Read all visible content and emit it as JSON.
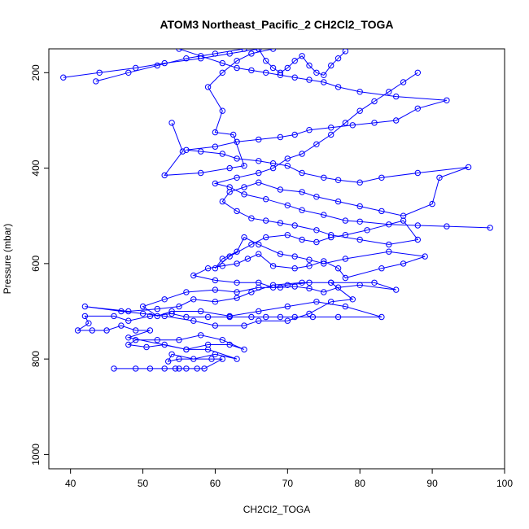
{
  "chart_data": {
    "type": "line",
    "title": "ATOM3 Northeast_Pacific_2 CH2Cl2_TOGA",
    "xlabel": "CH2Cl2_TOGA",
    "ylabel": "Pressure (mbar)",
    "xlim": [
      37,
      100
    ],
    "ylim": [
      1030,
      150
    ],
    "y_inverted": true,
    "xticks": [
      40,
      50,
      60,
      70,
      80,
      90,
      100
    ],
    "yticks": [
      200,
      400,
      600,
      800,
      1000
    ],
    "grid": false,
    "line_color": "#0000ff",
    "marker": "open-circle",
    "series": [
      {
        "points": [
          [
            46,
            820
          ],
          [
            49,
            820
          ],
          [
            51,
            820
          ],
          [
            53,
            820
          ],
          [
            54.5,
            820
          ],
          [
            55,
            820
          ],
          [
            56,
            820
          ],
          [
            57.5,
            820
          ],
          [
            58.5,
            820
          ],
          [
            61,
            800
          ],
          [
            59.5,
            800
          ],
          [
            55,
            800
          ],
          [
            53.5,
            805
          ],
          [
            54,
            790
          ],
          [
            57,
            800
          ],
          [
            60,
            790
          ],
          [
            63,
            800
          ],
          [
            59,
            780
          ],
          [
            56,
            780
          ],
          [
            53,
            770
          ],
          [
            50.5,
            775
          ],
          [
            48,
            770
          ],
          [
            49,
            760
          ],
          [
            52,
            760
          ],
          [
            55,
            760
          ],
          [
            58,
            750
          ],
          [
            61,
            760
          ],
          [
            64,
            780
          ],
          [
            62,
            770
          ],
          [
            59,
            770
          ],
          [
            56,
            780
          ],
          [
            48,
            755
          ],
          [
            51,
            740
          ],
          [
            49,
            740
          ],
          [
            47,
            730
          ],
          [
            45,
            740
          ],
          [
            43,
            740
          ],
          [
            41,
            740
          ],
          [
            42.5,
            725
          ],
          [
            42,
            710
          ],
          [
            46,
            710
          ],
          [
            48,
            720
          ],
          [
            51,
            710
          ],
          [
            54,
            705
          ],
          [
            56,
            712
          ],
          [
            59,
            712
          ],
          [
            62,
            712
          ],
          [
            65,
            712
          ],
          [
            67,
            712
          ],
          [
            69,
            712
          ],
          [
            71,
            712
          ],
          [
            73.5,
            712
          ],
          [
            77,
            712
          ],
          [
            83,
            712
          ],
          [
            78,
            690
          ],
          [
            74,
            680
          ],
          [
            70,
            690
          ],
          [
            66,
            700
          ],
          [
            62,
            710
          ],
          [
            58,
            700
          ],
          [
            54,
            700
          ],
          [
            52,
            710
          ],
          [
            50,
            690
          ],
          [
            53,
            675
          ],
          [
            56,
            660
          ],
          [
            60,
            655
          ],
          [
            63,
            660
          ],
          [
            66,
            650
          ],
          [
            69,
            650
          ],
          [
            71,
            648
          ],
          [
            73,
            652
          ],
          [
            75,
            660
          ],
          [
            77,
            650
          ],
          [
            80,
            645
          ],
          [
            85,
            655
          ],
          [
            82,
            640
          ],
          [
            76,
            640
          ],
          [
            72,
            640
          ],
          [
            68,
            645
          ],
          [
            65,
            660
          ],
          [
            63,
            672
          ],
          [
            60,
            680
          ],
          [
            57,
            675
          ],
          [
            55,
            690
          ],
          [
            52,
            695
          ],
          [
            48,
            700
          ],
          [
            42,
            690
          ],
          [
            47,
            700
          ],
          [
            50,
            705
          ],
          [
            53,
            710
          ],
          [
            57,
            720
          ],
          [
            60,
            730
          ],
          [
            64,
            730
          ],
          [
            66,
            720
          ],
          [
            70,
            720
          ],
          [
            73,
            705
          ],
          [
            76,
            680
          ],
          [
            79,
            675
          ],
          [
            76,
            640
          ],
          [
            73,
            640
          ],
          [
            70,
            645
          ],
          [
            68,
            650
          ],
          [
            66,
            640
          ],
          [
            63,
            640
          ],
          [
            60,
            635
          ],
          [
            57,
            625
          ],
          [
            59,
            610
          ],
          [
            61,
            605
          ],
          [
            63,
            600
          ],
          [
            64.5,
            590
          ],
          [
            66,
            580
          ],
          [
            68,
            605
          ],
          [
            71,
            610
          ],
          [
            73,
            605
          ],
          [
            75,
            595
          ],
          [
            77,
            610
          ],
          [
            78,
            630
          ],
          [
            83,
            610
          ],
          [
            86,
            600
          ],
          [
            89,
            585
          ],
          [
            84,
            575
          ],
          [
            78,
            590
          ],
          [
            75,
            600
          ],
          [
            73,
            592
          ],
          [
            71,
            585
          ],
          [
            69,
            580
          ],
          [
            66,
            560
          ],
          [
            64,
            545
          ],
          [
            63,
            575
          ],
          [
            61,
            590
          ],
          [
            60,
            610
          ],
          [
            62,
            585
          ],
          [
            65,
            560
          ],
          [
            67,
            545
          ],
          [
            70,
            540
          ],
          [
            72,
            550
          ],
          [
            74,
            555
          ],
          [
            76,
            545
          ],
          [
            78,
            540
          ],
          [
            81,
            530
          ],
          [
            86,
            510
          ],
          [
            88,
            550
          ],
          [
            84,
            560
          ],
          [
            80,
            550
          ],
          [
            76,
            540
          ],
          [
            74,
            530
          ],
          [
            71,
            520
          ],
          [
            69,
            515
          ],
          [
            67,
            510
          ],
          [
            65,
            505
          ],
          [
            63,
            490
          ],
          [
            61,
            470
          ],
          [
            62,
            450
          ],
          [
            64,
            440
          ],
          [
            66,
            430
          ],
          [
            69,
            445
          ],
          [
            72,
            450
          ],
          [
            74,
            460
          ],
          [
            77,
            470
          ],
          [
            80,
            480
          ],
          [
            83,
            490
          ],
          [
            86,
            500
          ],
          [
            90,
            475
          ],
          [
            91,
            420
          ],
          [
            95,
            398
          ],
          [
            88,
            410
          ],
          [
            83,
            420
          ],
          [
            80,
            430
          ],
          [
            77,
            425
          ],
          [
            75,
            420
          ],
          [
            72,
            410
          ],
          [
            70,
            395
          ],
          [
            68,
            390
          ],
          [
            66,
            385
          ],
          [
            63,
            380
          ],
          [
            61,
            370
          ],
          [
            58,
            365
          ],
          [
            56,
            362
          ],
          [
            60,
            355
          ],
          [
            63,
            345
          ],
          [
            66,
            340
          ],
          [
            69,
            335
          ],
          [
            71,
            330
          ],
          [
            73,
            320
          ],
          [
            76,
            315
          ],
          [
            79,
            310
          ],
          [
            82,
            305
          ],
          [
            85,
            300
          ],
          [
            88,
            275
          ],
          [
            92,
            258
          ],
          [
            85,
            250
          ],
          [
            80,
            240
          ],
          [
            77,
            230
          ],
          [
            75,
            220
          ],
          [
            73,
            215
          ],
          [
            71,
            210
          ],
          [
            69,
            205
          ],
          [
            67,
            200
          ],
          [
            65,
            195
          ],
          [
            63,
            190
          ],
          [
            61,
            180
          ],
          [
            58,
            165
          ],
          [
            55,
            150
          ]
        ]
      },
      {
        "points": [
          [
            39,
            210
          ],
          [
            44,
            200
          ],
          [
            49,
            190
          ],
          [
            53,
            180
          ],
          [
            58,
            170
          ],
          [
            62,
            160
          ],
          [
            66,
            150
          ]
        ]
      },
      {
        "points": [
          [
            43.5,
            218
          ],
          [
            48,
            200
          ],
          [
            52,
            185
          ],
          [
            56,
            170
          ],
          [
            60,
            160
          ],
          [
            64,
            150
          ]
        ]
      },
      {
        "points": [
          [
            54,
            305
          ],
          [
            55.5,
            365
          ],
          [
            53,
            415
          ],
          [
            58,
            410
          ],
          [
            62,
            400
          ],
          [
            64,
            395
          ],
          [
            62.5,
            330
          ],
          [
            60,
            325
          ],
          [
            61,
            280
          ],
          [
            59,
            230
          ],
          [
            61,
            200
          ],
          [
            63,
            175
          ],
          [
            65,
            160
          ],
          [
            68,
            150
          ]
        ]
      },
      {
        "points": [
          [
            98,
            525
          ],
          [
            92,
            522
          ],
          [
            88,
            520
          ],
          [
            84,
            518
          ],
          [
            80,
            512
          ],
          [
            78,
            510
          ],
          [
            75,
            498
          ],
          [
            72,
            488
          ],
          [
            70,
            478
          ],
          [
            67,
            465
          ],
          [
            64,
            455
          ],
          [
            62,
            440
          ],
          [
            60,
            432
          ],
          [
            63,
            420
          ],
          [
            66,
            410
          ],
          [
            68,
            400
          ],
          [
            70,
            380
          ],
          [
            72,
            370
          ],
          [
            74,
            350
          ],
          [
            76,
            330
          ],
          [
            78,
            305
          ],
          [
            80,
            280
          ],
          [
            82,
            260
          ],
          [
            84,
            240
          ],
          [
            86,
            220
          ],
          [
            88,
            200
          ]
        ]
      },
      {
        "points": [
          [
            66,
            150
          ],
          [
            67,
            175
          ],
          [
            68,
            190
          ],
          [
            69,
            200
          ],
          [
            70,
            190
          ],
          [
            71,
            175
          ],
          [
            72,
            165
          ],
          [
            73,
            185
          ],
          [
            74,
            200
          ],
          [
            75,
            205
          ],
          [
            76,
            185
          ],
          [
            77,
            170
          ],
          [
            78,
            155
          ]
        ]
      }
    ]
  }
}
